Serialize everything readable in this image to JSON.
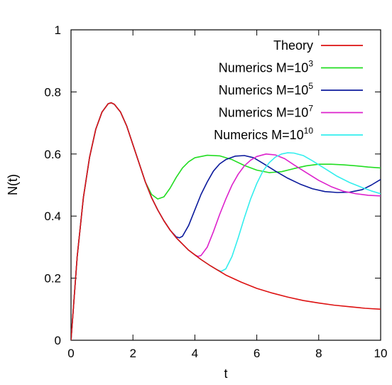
{
  "chart_data": {
    "type": "line",
    "title": "",
    "xlabel": "t",
    "ylabel": "N(t)",
    "xlim": [
      0,
      10
    ],
    "ylim": [
      0,
      1
    ],
    "xticks": [
      0,
      2,
      4,
      6,
      8,
      10
    ],
    "yticks": [
      0,
      0.2,
      0.4,
      0.6,
      0.8,
      1
    ],
    "xtick_labels": [
      "0",
      "2",
      "4",
      "6",
      "8",
      "10"
    ],
    "ytick_labels": [
      "0",
      "0.2",
      "0.4",
      "0.6",
      "0.8",
      "1"
    ],
    "grid": false,
    "legend_position": "top-right",
    "series": [
      {
        "name": "Theory",
        "legend_base": "Theory",
        "legend_sup": "",
        "color": "#dd1111",
        "points": [
          [
            0,
            0
          ],
          [
            0.2,
            0.27
          ],
          [
            0.4,
            0.46
          ],
          [
            0.6,
            0.59
          ],
          [
            0.8,
            0.68
          ],
          [
            1.0,
            0.735
          ],
          [
            1.2,
            0.762
          ],
          [
            1.3,
            0.765
          ],
          [
            1.4,
            0.76
          ],
          [
            1.6,
            0.735
          ],
          [
            1.8,
            0.69
          ],
          [
            2.0,
            0.63
          ],
          [
            2.2,
            0.57
          ],
          [
            2.4,
            0.51
          ],
          [
            2.6,
            0.46
          ],
          [
            2.8,
            0.42
          ],
          [
            3.0,
            0.385
          ],
          [
            3.2,
            0.355
          ],
          [
            3.4,
            0.33
          ],
          [
            3.6,
            0.31
          ],
          [
            3.8,
            0.29
          ],
          [
            4.0,
            0.275
          ],
          [
            4.2,
            0.26
          ],
          [
            4.5,
            0.24
          ],
          [
            4.8,
            0.222
          ],
          [
            5.0,
            0.21
          ],
          [
            5.5,
            0.187
          ],
          [
            6.0,
            0.167
          ],
          [
            6.5,
            0.152
          ],
          [
            7.0,
            0.139
          ],
          [
            7.5,
            0.128
          ],
          [
            8.0,
            0.12
          ],
          [
            8.5,
            0.113
          ],
          [
            9.0,
            0.108
          ],
          [
            9.5,
            0.103
          ],
          [
            10.0,
            0.1
          ]
        ]
      },
      {
        "name": "Numerics M=10^3",
        "legend_base": "Numerics M=10",
        "legend_sup": "3",
        "color": "#22dd22",
        "points": [
          [
            0,
            0
          ],
          [
            0.2,
            0.27
          ],
          [
            0.4,
            0.46
          ],
          [
            0.6,
            0.59
          ],
          [
            0.8,
            0.68
          ],
          [
            1.0,
            0.735
          ],
          [
            1.2,
            0.762
          ],
          [
            1.3,
            0.765
          ],
          [
            1.4,
            0.76
          ],
          [
            1.6,
            0.735
          ],
          [
            1.8,
            0.69
          ],
          [
            2.0,
            0.63
          ],
          [
            2.2,
            0.57
          ],
          [
            2.4,
            0.51
          ],
          [
            2.6,
            0.47
          ],
          [
            2.8,
            0.455
          ],
          [
            3.0,
            0.462
          ],
          [
            3.2,
            0.49
          ],
          [
            3.4,
            0.525
          ],
          [
            3.6,
            0.555
          ],
          [
            3.8,
            0.575
          ],
          [
            4.0,
            0.588
          ],
          [
            4.4,
            0.596
          ],
          [
            4.8,
            0.594
          ],
          [
            5.2,
            0.582
          ],
          [
            5.6,
            0.563
          ],
          [
            6.0,
            0.548
          ],
          [
            6.4,
            0.54
          ],
          [
            6.8,
            0.543
          ],
          [
            7.2,
            0.553
          ],
          [
            7.6,
            0.562
          ],
          [
            8.0,
            0.567
          ],
          [
            8.4,
            0.567
          ],
          [
            8.8,
            0.565
          ],
          [
            9.2,
            0.562
          ],
          [
            9.6,
            0.558
          ],
          [
            10.0,
            0.555
          ]
        ]
      },
      {
        "name": "Numerics M=10^5",
        "legend_base": "Numerics M=10",
        "legend_sup": "5",
        "color": "#0b1a9c",
        "points": [
          [
            0,
            0
          ],
          [
            0.2,
            0.27
          ],
          [
            0.4,
            0.46
          ],
          [
            0.6,
            0.59
          ],
          [
            0.8,
            0.68
          ],
          [
            1.0,
            0.735
          ],
          [
            1.2,
            0.762
          ],
          [
            1.3,
            0.765
          ],
          [
            1.4,
            0.76
          ],
          [
            1.6,
            0.735
          ],
          [
            1.8,
            0.69
          ],
          [
            2.0,
            0.63
          ],
          [
            2.2,
            0.57
          ],
          [
            2.4,
            0.51
          ],
          [
            2.6,
            0.46
          ],
          [
            2.8,
            0.42
          ],
          [
            3.0,
            0.385
          ],
          [
            3.2,
            0.355
          ],
          [
            3.4,
            0.333
          ],
          [
            3.5,
            0.33
          ],
          [
            3.6,
            0.335
          ],
          [
            3.8,
            0.37
          ],
          [
            4.0,
            0.42
          ],
          [
            4.2,
            0.47
          ],
          [
            4.4,
            0.51
          ],
          [
            4.6,
            0.545
          ],
          [
            4.8,
            0.568
          ],
          [
            5.0,
            0.582
          ],
          [
            5.3,
            0.593
          ],
          [
            5.6,
            0.595
          ],
          [
            5.9,
            0.588
          ],
          [
            6.2,
            0.57
          ],
          [
            6.6,
            0.545
          ],
          [
            7.0,
            0.522
          ],
          [
            7.4,
            0.503
          ],
          [
            7.8,
            0.488
          ],
          [
            8.2,
            0.479
          ],
          [
            8.6,
            0.476
          ],
          [
            9.0,
            0.477
          ],
          [
            9.4,
            0.485
          ],
          [
            9.7,
            0.5
          ],
          [
            10.0,
            0.518
          ]
        ]
      },
      {
        "name": "Numerics M=10^7",
        "legend_base": "Numerics M=10",
        "legend_sup": "7",
        "color": "#dd22cc",
        "points": [
          [
            0,
            0
          ],
          [
            0.2,
            0.27
          ],
          [
            0.4,
            0.46
          ],
          [
            0.6,
            0.59
          ],
          [
            0.8,
            0.68
          ],
          [
            1.0,
            0.735
          ],
          [
            1.2,
            0.762
          ],
          [
            1.3,
            0.765
          ],
          [
            1.4,
            0.76
          ],
          [
            1.6,
            0.735
          ],
          [
            1.8,
            0.69
          ],
          [
            2.0,
            0.63
          ],
          [
            2.2,
            0.57
          ],
          [
            2.4,
            0.51
          ],
          [
            2.6,
            0.46
          ],
          [
            2.8,
            0.42
          ],
          [
            3.0,
            0.385
          ],
          [
            3.2,
            0.355
          ],
          [
            3.4,
            0.33
          ],
          [
            3.6,
            0.31
          ],
          [
            3.8,
            0.29
          ],
          [
            4.0,
            0.275
          ],
          [
            4.1,
            0.27
          ],
          [
            4.2,
            0.273
          ],
          [
            4.4,
            0.3
          ],
          [
            4.6,
            0.35
          ],
          [
            4.8,
            0.405
          ],
          [
            5.0,
            0.455
          ],
          [
            5.2,
            0.5
          ],
          [
            5.4,
            0.535
          ],
          [
            5.6,
            0.562
          ],
          [
            5.8,
            0.58
          ],
          [
            6.0,
            0.592
          ],
          [
            6.3,
            0.6
          ],
          [
            6.6,
            0.597
          ],
          [
            6.9,
            0.585
          ],
          [
            7.2,
            0.565
          ],
          [
            7.6,
            0.54
          ],
          [
            8.0,
            0.515
          ],
          [
            8.4,
            0.495
          ],
          [
            8.8,
            0.48
          ],
          [
            9.2,
            0.472
          ],
          [
            9.6,
            0.467
          ],
          [
            10.0,
            0.465
          ]
        ]
      },
      {
        "name": "Numerics M=10^10",
        "legend_base": "Numerics M=10",
        "legend_sup": "10",
        "color": "#33eeee",
        "points": [
          [
            0,
            0
          ],
          [
            0.2,
            0.27
          ],
          [
            0.4,
            0.46
          ],
          [
            0.6,
            0.59
          ],
          [
            0.8,
            0.68
          ],
          [
            1.0,
            0.735
          ],
          [
            1.2,
            0.762
          ],
          [
            1.3,
            0.765
          ],
          [
            1.4,
            0.76
          ],
          [
            1.6,
            0.735
          ],
          [
            1.8,
            0.69
          ],
          [
            2.0,
            0.63
          ],
          [
            2.2,
            0.57
          ],
          [
            2.4,
            0.51
          ],
          [
            2.6,
            0.46
          ],
          [
            2.8,
            0.42
          ],
          [
            3.0,
            0.385
          ],
          [
            3.2,
            0.355
          ],
          [
            3.4,
            0.33
          ],
          [
            3.6,
            0.31
          ],
          [
            3.8,
            0.29
          ],
          [
            4.0,
            0.275
          ],
          [
            4.2,
            0.26
          ],
          [
            4.5,
            0.24
          ],
          [
            4.7,
            0.228
          ],
          [
            4.85,
            0.222
          ],
          [
            5.0,
            0.23
          ],
          [
            5.2,
            0.27
          ],
          [
            5.4,
            0.33
          ],
          [
            5.6,
            0.395
          ],
          [
            5.8,
            0.455
          ],
          [
            6.0,
            0.505
          ],
          [
            6.2,
            0.545
          ],
          [
            6.4,
            0.572
          ],
          [
            6.6,
            0.59
          ],
          [
            6.8,
            0.6
          ],
          [
            7.0,
            0.604
          ],
          [
            7.2,
            0.603
          ],
          [
            7.5,
            0.595
          ],
          [
            7.8,
            0.578
          ],
          [
            8.2,
            0.553
          ],
          [
            8.6,
            0.528
          ],
          [
            9.0,
            0.508
          ],
          [
            9.4,
            0.492
          ],
          [
            9.7,
            0.481
          ],
          [
            10.0,
            0.472
          ]
        ]
      }
    ]
  }
}
